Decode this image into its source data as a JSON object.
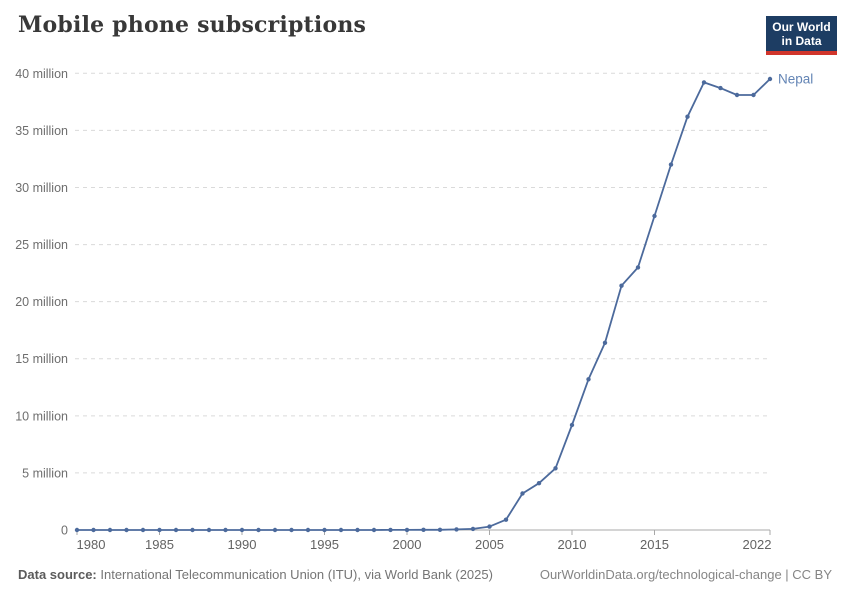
{
  "header": {
    "title": "Mobile phone subscriptions",
    "logo": {
      "line1": "Our World",
      "line2": "in Data",
      "bg_color": "#1d3d63",
      "accent_color": "#d1352b"
    }
  },
  "chart_data": {
    "type": "line",
    "title": "Mobile phone subscriptions",
    "unit": "million",
    "grid": "horizontal dashed",
    "legend_position": "end-of-line label",
    "x_range": [
      1980,
      2022
    ],
    "ylim": [
      0,
      40
    ],
    "xticks": [
      1980,
      1985,
      1990,
      1995,
      2000,
      2005,
      2010,
      2015,
      2022
    ],
    "yticks": [
      {
        "value": 0,
        "label": "0"
      },
      {
        "value": 5,
        "label": "5 million"
      },
      {
        "value": 10,
        "label": "10 million"
      },
      {
        "value": 15,
        "label": "15 million"
      },
      {
        "value": 20,
        "label": "20 million"
      },
      {
        "value": 25,
        "label": "25 million"
      },
      {
        "value": 30,
        "label": "30 million"
      },
      {
        "value": 35,
        "label": "35 million"
      },
      {
        "value": 40,
        "label": "40 million"
      }
    ],
    "series": [
      {
        "name": "Nepal",
        "color": "#4c6a9c",
        "label_color": "#6485b5",
        "x": [
          1980,
          1981,
          1982,
          1983,
          1984,
          1985,
          1986,
          1987,
          1988,
          1989,
          1990,
          1991,
          1992,
          1993,
          1994,
          1995,
          1996,
          1997,
          1998,
          1999,
          2000,
          2001,
          2002,
          2003,
          2004,
          2005,
          2006,
          2007,
          2008,
          2009,
          2010,
          2011,
          2012,
          2013,
          2014,
          2015,
          2016,
          2017,
          2018,
          2019,
          2020,
          2021,
          2022
        ],
        "values": [
          0,
          0,
          0,
          0,
          0,
          0,
          0,
          0,
          0,
          0,
          0,
          0,
          0,
          0,
          0,
          0,
          0,
          0,
          0,
          0.01,
          0.01,
          0.02,
          0.02,
          0.05,
          0.1,
          0.3,
          0.9,
          3.2,
          4.1,
          5.4,
          9.2,
          13.2,
          16.4,
          21.4,
          23.0,
          27.5,
          32.0,
          36.2,
          39.2,
          38.7,
          38.1,
          38.1,
          39.5
        ]
      }
    ]
  },
  "footer": {
    "source_label": "Data source:",
    "source_text": " International Telecommunication Union (ITU), via World Bank (2025)",
    "attribution": "OurWorldinData.org/technological-change | CC BY"
  }
}
